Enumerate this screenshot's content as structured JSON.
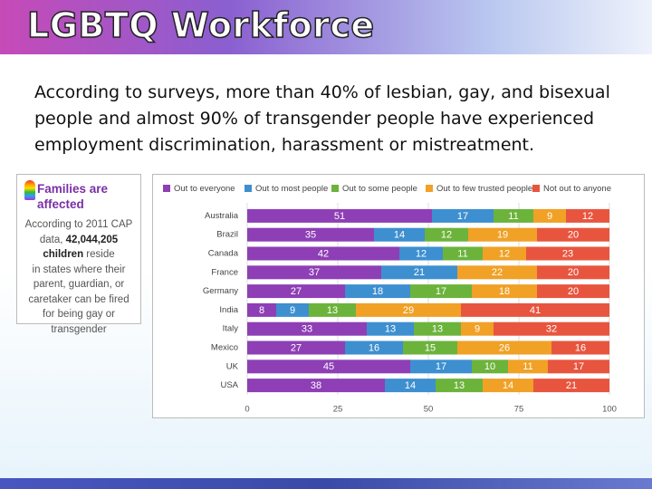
{
  "header": {
    "title": "LGBTQ Workforce"
  },
  "body": {
    "text": "According to surveys, more than 40% of lesbian, gay, and bisexual people and almost 90% of transgender people have experienced employment discrimination, harassment or mistreatment."
  },
  "sidebar": {
    "title": "Families are affected",
    "lines": [
      [
        "According to 2011 CAP"
      ],
      [
        "data, ",
        "42,044,205"
      ],
      [
        "children",
        " reside"
      ],
      [
        "in states where  their"
      ],
      [
        "parent, guardian, or"
      ],
      [
        "caretaker can be fired"
      ],
      [
        "for being gay or"
      ],
      [
        "transgender"
      ]
    ]
  },
  "chart_data": {
    "type": "stacked-bar-horizontal",
    "categories": [
      "Australia",
      "Brazil",
      "Canada",
      "France",
      "Germany",
      "India",
      "Italy",
      "Mexico",
      "UK",
      "USA"
    ],
    "series": [
      {
        "name": "Out to everyone",
        "color": "#8e3fb5",
        "values": [
          51,
          35,
          42,
          37,
          27,
          8,
          33,
          27,
          45,
          38
        ]
      },
      {
        "name": "Out to most people",
        "color": "#3d8fd0",
        "values": [
          17,
          14,
          12,
          21,
          18,
          9,
          13,
          16,
          17,
          14
        ]
      },
      {
        "name": "Out to some people",
        "color": "#6cb33c",
        "values": [
          11,
          12,
          11,
          null,
          17,
          13,
          13,
          15,
          10,
          13
        ]
      },
      {
        "name": "Out to few trusted people",
        "color": "#f0a126",
        "values": [
          9,
          19,
          12,
          22,
          18,
          29,
          9,
          26,
          11,
          14
        ]
      },
      {
        "name": "Not out to anyone",
        "color": "#e8553f",
        "values": [
          12,
          20,
          23,
          20,
          20,
          41,
          32,
          16,
          17,
          21
        ]
      }
    ],
    "xlim": [
      0,
      100
    ],
    "xticks": [
      0,
      25,
      50,
      75,
      100
    ],
    "grid": true
  }
}
